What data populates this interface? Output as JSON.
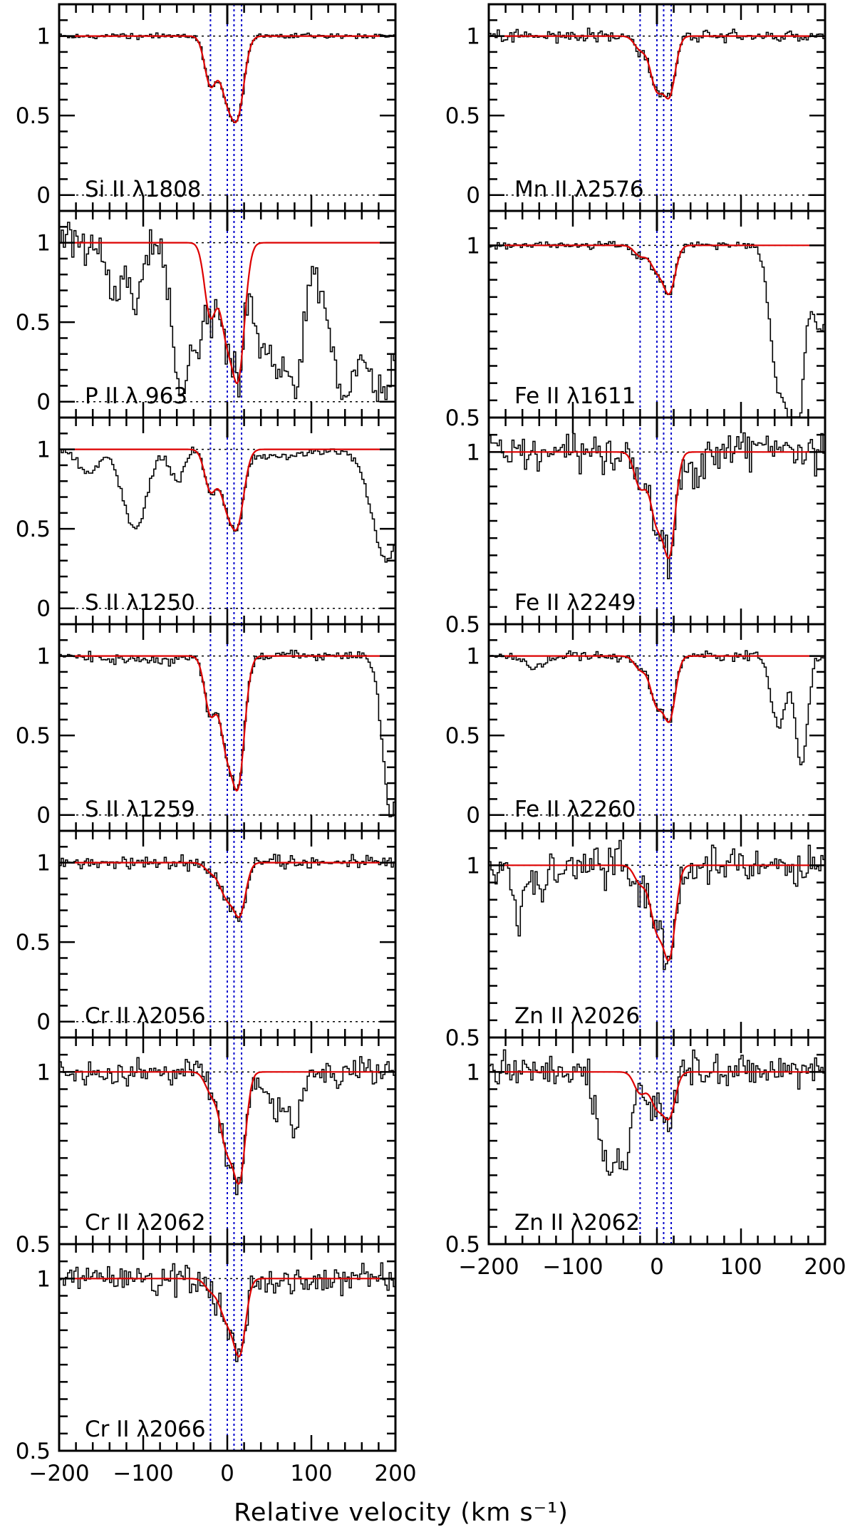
{
  "chart_data": {
    "type": "line",
    "title": "",
    "xlabel": "Relative velocity (km s⁻¹)",
    "ylabel": "",
    "xlim": [
      -200,
      200
    ],
    "x_ticks": [
      -200,
      -100,
      0,
      100,
      200
    ],
    "x_tick_labels": [
      "−200",
      "−100",
      "0",
      "100",
      "200"
    ],
    "component_velocities": [
      -20,
      0,
      8,
      17
    ],
    "colors": {
      "data": "#000000",
      "fit": "#dd0000",
      "components": "#0000cc",
      "axes": "#000000"
    },
    "columns": [
      {
        "panels": [
          {
            "label": "Si II λ1808",
            "ion": "Si II",
            "wavelength": "1808",
            "ylim": [
              -0.1,
              1.2
            ],
            "yticks": [
              "1",
              "0.5",
              "0"
            ],
            "noise": 0.008,
            "components": [
              {
                "v": -20,
                "d": 0.3,
                "w": 7
              },
              {
                "v": 0,
                "d": 0.35,
                "w": 9
              },
              {
                "v": 12,
                "d": 0.45,
                "w": 8
              }
            ],
            "extra_absorption": []
          },
          {
            "label": "P II λ 963",
            "ion": "P II",
            "wavelength": "963",
            "ylim": [
              -0.1,
              1.2
            ],
            "yticks": [
              "1",
              "0.5",
              "0"
            ],
            "noise": 0.06,
            "components": [
              {
                "v": -20,
                "d": 0.45,
                "w": 7
              },
              {
                "v": 0,
                "d": 0.55,
                "w": 9
              },
              {
                "v": 12,
                "d": 0.85,
                "w": 8
              }
            ],
            "extra_absorption": [
              {
                "v": -135,
                "d": 0.35,
                "w": 8
              },
              {
                "v": -110,
                "d": 0.45,
                "w": 7
              },
              {
                "v": -55,
                "d": 1.0,
                "w": 10
              },
              {
                "v": -35,
                "d": 0.6,
                "w": 6
              },
              {
                "v": 40,
                "d": 0.6,
                "w": 9
              },
              {
                "v": 60,
                "d": 0.8,
                "w": 12
              },
              {
                "v": 80,
                "d": 0.9,
                "w": 10
              },
              {
                "v": 140,
                "d": 0.95,
                "w": 18
              },
              {
                "v": 185,
                "d": 0.95,
                "w": 20
              }
            ]
          },
          {
            "label": "S II λ1250",
            "ion": "S II",
            "wavelength": "1250",
            "ylim": [
              -0.1,
              1.2
            ],
            "yticks": [
              "1",
              "0.5",
              "0"
            ],
            "noise": 0.012,
            "components": [
              {
                "v": -20,
                "d": 0.25,
                "w": 7
              },
              {
                "v": 0,
                "d": 0.32,
                "w": 9
              },
              {
                "v": 12,
                "d": 0.42,
                "w": 8
              }
            ],
            "extra_absorption": [
              {
                "v": -165,
                "d": 0.15,
                "w": 12
              },
              {
                "v": -110,
                "d": 0.5,
                "w": 14
              },
              {
                "v": -60,
                "d": 0.2,
                "w": 8
              },
              {
                "v": 60,
                "d": 0.05,
                "w": 30
              },
              {
                "v": 190,
                "d": 0.7,
                "w": 18
              }
            ]
          },
          {
            "label": "S II λ1259",
            "ion": "S II",
            "wavelength": "1259",
            "ylim": [
              -0.1,
              1.2
            ],
            "yticks": [
              "1",
              "0.5",
              "0"
            ],
            "noise": 0.015,
            "components": [
              {
                "v": -20,
                "d": 0.35,
                "w": 7
              },
              {
                "v": 0,
                "d": 0.55,
                "w": 9
              },
              {
                "v": 12,
                "d": 0.8,
                "w": 8
              }
            ],
            "extra_absorption": [
              {
                "v": -100,
                "d": 0.03,
                "w": 40
              },
              {
                "v": 195,
                "d": 1.0,
                "w": 10
              }
            ]
          },
          {
            "label": "Cr II λ2056",
            "ion": "Cr II",
            "wavelength": "2056",
            "ylim": [
              -0.1,
              1.2
            ],
            "yticks": [
              "1",
              "0.5",
              "0"
            ],
            "noise": 0.02,
            "components": [
              {
                "v": -20,
                "d": 0.05,
                "w": 7
              },
              {
                "v": 0,
                "d": 0.22,
                "w": 9
              },
              {
                "v": 15,
                "d": 0.3,
                "w": 7
              }
            ],
            "extra_absorption": []
          },
          {
            "label": "Cr II λ2062",
            "ion": "Cr II",
            "wavelength": "2062",
            "ylim": [
              0.5,
              1.1
            ],
            "yticks": [
              "1",
              "0.5"
            ],
            "noise": 0.02,
            "components": [
              {
                "v": -20,
                "d": 0.05,
                "w": 7
              },
              {
                "v": 0,
                "d": 0.22,
                "w": 9
              },
              {
                "v": 15,
                "d": 0.28,
                "w": 7
              }
            ],
            "extra_absorption": [
              {
                "v": 55,
                "d": 0.12,
                "w": 10
              },
              {
                "v": 80,
                "d": 0.16,
                "w": 8
              }
            ]
          },
          {
            "label": "Cr II λ2066",
            "ion": "Cr II",
            "wavelength": "2066",
            "ylim": [
              0.5,
              1.1
            ],
            "yticks": [
              "1",
              "0.5"
            ],
            "noise": 0.02,
            "components": [
              {
                "v": -20,
                "d": 0.03,
                "w": 7
              },
              {
                "v": 0,
                "d": 0.12,
                "w": 9
              },
              {
                "v": 15,
                "d": 0.2,
                "w": 7
              }
            ],
            "extra_absorption": []
          }
        ]
      },
      {
        "panels": [
          {
            "label": "Mn II λ2576",
            "ion": "Mn II",
            "wavelength": "2576",
            "ylim": [
              -0.1,
              1.2
            ],
            "yticks": [
              "1",
              "0.5",
              "0"
            ],
            "noise": 0.02,
            "components": [
              {
                "v": -20,
                "d": 0.08,
                "w": 7
              },
              {
                "v": 0,
                "d": 0.33,
                "w": 8
              },
              {
                "v": 15,
                "d": 0.35,
                "w": 7
              }
            ],
            "extra_absorption": []
          },
          {
            "label": "Fe II λ1611",
            "ion": "Fe II",
            "wavelength": "1611",
            "ylim": [
              0.5,
              1.1
            ],
            "yticks": [
              "1",
              "0.5"
            ],
            "noise": 0.006,
            "components": [
              {
                "v": -20,
                "d": 0.03,
                "w": 7
              },
              {
                "v": 0,
                "d": 0.07,
                "w": 8
              },
              {
                "v": 15,
                "d": 0.13,
                "w": 7
              }
            ],
            "extra_absorption": [
              {
                "v": 145,
                "d": 0.4,
                "w": 10
              },
              {
                "v": 165,
                "d": 0.6,
                "w": 9
              },
              {
                "v": 195,
                "d": 0.25,
                "w": 10
              }
            ]
          },
          {
            "label": "Fe II λ2249",
            "ion": "Fe II",
            "wavelength": "2249",
            "ylim": [
              0.5,
              1.1
            ],
            "yticks": [
              "1",
              "0.5"
            ],
            "noise": 0.03,
            "components": [
              {
                "v": -20,
                "d": 0.1,
                "w": 7
              },
              {
                "v": 0,
                "d": 0.2,
                "w": 8
              },
              {
                "v": 15,
                "d": 0.28,
                "w": 7
              }
            ],
            "extra_absorption": [
              {
                "v": 45,
                "d": 0.08,
                "w": 10
              }
            ]
          },
          {
            "label": "Fe II λ2260",
            "ion": "Fe II",
            "wavelength": "2260",
            "ylim": [
              -0.1,
              1.2
            ],
            "yticks": [
              "1",
              "0.5",
              "0"
            ],
            "noise": 0.015,
            "components": [
              {
                "v": -20,
                "d": 0.08,
                "w": 7
              },
              {
                "v": 0,
                "d": 0.3,
                "w": 8
              },
              {
                "v": 15,
                "d": 0.38,
                "w": 7
              }
            ],
            "extra_absorption": [
              {
                "v": -145,
                "d": 0.08,
                "w": 8
              },
              {
                "v": 145,
                "d": 0.45,
                "w": 9
              },
              {
                "v": 172,
                "d": 0.7,
                "w": 7
              }
            ]
          },
          {
            "label": "Zn II λ2026",
            "ion": "Zn II",
            "wavelength": "2026",
            "ylim": [
              0.5,
              1.1
            ],
            "yticks": [
              "1",
              "0.5"
            ],
            "noise": 0.03,
            "components": [
              {
                "v": -20,
                "d": 0.05,
                "w": 7
              },
              {
                "v": 0,
                "d": 0.18,
                "w": 8
              },
              {
                "v": 15,
                "d": 0.25,
                "w": 7
              }
            ],
            "extra_absorption": [
              {
                "v": -165,
                "d": 0.2,
                "w": 5
              },
              {
                "v": -140,
                "d": 0.08,
                "w": 5
              }
            ]
          },
          {
            "label": "Zn II λ2062",
            "ion": "Zn II",
            "wavelength": "2062",
            "ylim": [
              0.5,
              1.1
            ],
            "yticks": [
              "1",
              "0.5"
            ],
            "noise": 0.025,
            "components": [
              {
                "v": -20,
                "d": 0.06,
                "w": 7
              },
              {
                "v": 0,
                "d": 0.1,
                "w": 8
              },
              {
                "v": 15,
                "d": 0.12,
                "w": 7
              }
            ],
            "extra_absorption": [
              {
                "v": -60,
                "d": 0.27,
                "w": 9
              },
              {
                "v": -40,
                "d": 0.27,
                "w": 8
              }
            ]
          }
        ]
      }
    ]
  }
}
